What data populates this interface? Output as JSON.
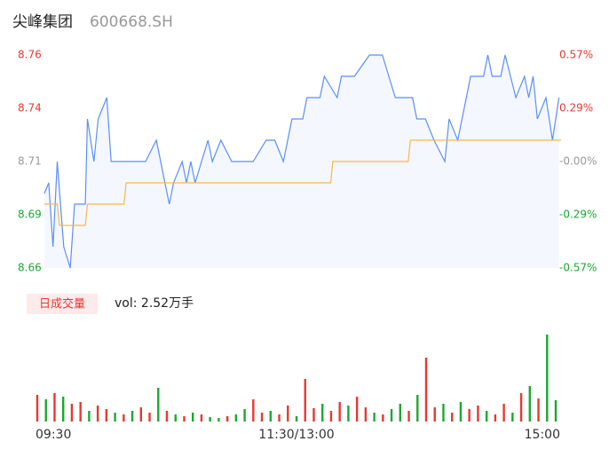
{
  "header": {
    "name": "尖峰集团",
    "code": "600668.SH"
  },
  "chart_data": [
    {
      "type": "line",
      "xlim": [
        0,
        240
      ],
      "ylim": [
        8.66,
        8.76
      ],
      "yticks": [
        8.76,
        {
          "value": 8.735,
          "label": "8.74"
        },
        8.71,
        {
          "value": 8.685,
          "label": "8.69"
        },
        8.66
      ],
      "y2lim": [
        -0.57,
        0.57
      ],
      "y2ticks": [
        {
          "value": 0.57,
          "label": "0.57%"
        },
        {
          "value": 0.285,
          "label": "0.29%"
        },
        {
          "value": 0,
          "label": "-0.00%"
        },
        {
          "value": -0.285,
          "label": "-0.29%"
        },
        {
          "value": -0.57,
          "label": "-0.57%"
        }
      ],
      "up_color": "#e8382f",
      "down_color": "#1aa832",
      "flat_color": "#999999",
      "series": [
        {
          "color": "#5b8ff9",
          "area": "#f4f7fe",
          "x": [
            0,
            2,
            4,
            6,
            9,
            12,
            14,
            19,
            20,
            23,
            25,
            29,
            31,
            47,
            52,
            54,
            56,
            58,
            60,
            64,
            66,
            68,
            70,
            73,
            76,
            78,
            82,
            87,
            97,
            103,
            107,
            111,
            115,
            120,
            122,
            128,
            130,
            136,
            138,
            144,
            151,
            157,
            160,
            163,
            171,
            173,
            177,
            181,
            186,
            188,
            192,
            196,
            198,
            204,
            206,
            208,
            212,
            214,
            219,
            223,
            225,
            227,
            229,
            233,
            236,
            239
          ],
          "values": [
            8.695,
            8.7,
            8.67,
            8.71,
            8.67,
            8.66,
            8.69,
            8.69,
            8.73,
            8.71,
            8.73,
            8.74,
            8.71,
            8.71,
            8.72,
            8.71,
            8.7,
            8.69,
            8.7,
            8.71,
            8.7,
            8.71,
            8.7,
            8.71,
            8.72,
            8.71,
            8.72,
            8.71,
            8.71,
            8.72,
            8.72,
            8.71,
            8.73,
            8.73,
            8.74,
            8.74,
            8.75,
            8.74,
            8.75,
            8.75,
            8.76,
            8.76,
            8.75,
            8.74,
            8.74,
            8.73,
            8.73,
            8.72,
            8.71,
            8.73,
            8.72,
            8.74,
            8.75,
            8.75,
            8.76,
            8.75,
            8.75,
            8.76,
            8.74,
            8.75,
            8.74,
            8.75,
            8.73,
            8.74,
            8.72,
            8.74
          ]
        },
        {
          "color": "#f5b94a",
          "x": [
            0,
            6,
            7,
            19,
            20,
            37,
            38,
            133,
            134,
            169,
            170,
            240
          ],
          "values": [
            8.69,
            8.69,
            8.68,
            8.68,
            8.69,
            8.69,
            8.7,
            8.7,
            8.71,
            8.71,
            8.72,
            8.72
          ]
        }
      ]
    },
    {
      "type": "bar",
      "label": "日成交量",
      "summary": "vol: 2.52万手",
      "xlim": [
        0,
        240
      ],
      "xticks": [
        {
          "value": 0,
          "label": "09:30"
        },
        {
          "value": 120,
          "label": "11:30/13:00"
        },
        {
          "value": 240,
          "label": "15:00"
        }
      ],
      "ylim": [
        0,
        100
      ],
      "x": [
        0,
        4,
        8,
        12,
        16,
        20,
        24,
        28,
        32,
        36,
        40,
        44,
        48,
        52,
        56,
        60,
        64,
        68,
        72,
        76,
        80,
        84,
        88,
        92,
        96,
        100,
        104,
        108,
        112,
        116,
        120,
        124,
        128,
        132,
        136,
        140,
        144,
        148,
        152,
        156,
        160,
        164,
        168,
        172,
        176,
        180,
        184,
        188,
        192,
        196,
        200,
        204,
        208,
        212,
        216,
        220,
        224,
        228,
        232,
        236,
        240
      ],
      "values": [
        30,
        25,
        32,
        28,
        20,
        22,
        12,
        18,
        14,
        10,
        8,
        12,
        16,
        10,
        38,
        12,
        8,
        6,
        10,
        8,
        5,
        4,
        6,
        8,
        14,
        25,
        10,
        12,
        8,
        18,
        6,
        48,
        15,
        20,
        12,
        22,
        18,
        28,
        16,
        10,
        8,
        14,
        20,
        12,
        30,
        72,
        16,
        20,
        10,
        22,
        14,
        18,
        12,
        8,
        20,
        10,
        32,
        40,
        26,
        98,
        24
      ],
      "colors": [
        "#e8382f",
        "#1aa832",
        "#e8382f",
        "#1aa832",
        "#e8382f",
        "#e8382f",
        "#1aa832",
        "#e8382f",
        "#e8382f",
        "#1aa832",
        "#e8382f",
        "#1aa832",
        "#e8382f",
        "#e8382f",
        "#1aa832",
        "#e8382f",
        "#1aa832",
        "#e8382f",
        "#1aa832",
        "#e8382f",
        "#1aa832",
        "#1aa832",
        "#e8382f",
        "#1aa832",
        "#1aa832",
        "#e8382f",
        "#e8382f",
        "#1aa832",
        "#e8382f",
        "#e8382f",
        "#1aa832",
        "#e8382f",
        "#e8382f",
        "#1aa832",
        "#e8382f",
        "#e8382f",
        "#1aa832",
        "#e8382f",
        "#e8382f",
        "#1aa832",
        "#e8382f",
        "#1aa832",
        "#1aa832",
        "#e8382f",
        "#1aa832",
        "#e8382f",
        "#e8382f",
        "#1aa832",
        "#e8382f",
        "#1aa832",
        "#e8382f",
        "#e8382f",
        "#1aa832",
        "#e8382f",
        "#e8382f",
        "#1aa832",
        "#e8382f",
        "#1aa832",
        "#e8382f",
        "#1aa832",
        "#1aa832"
      ]
    }
  ]
}
